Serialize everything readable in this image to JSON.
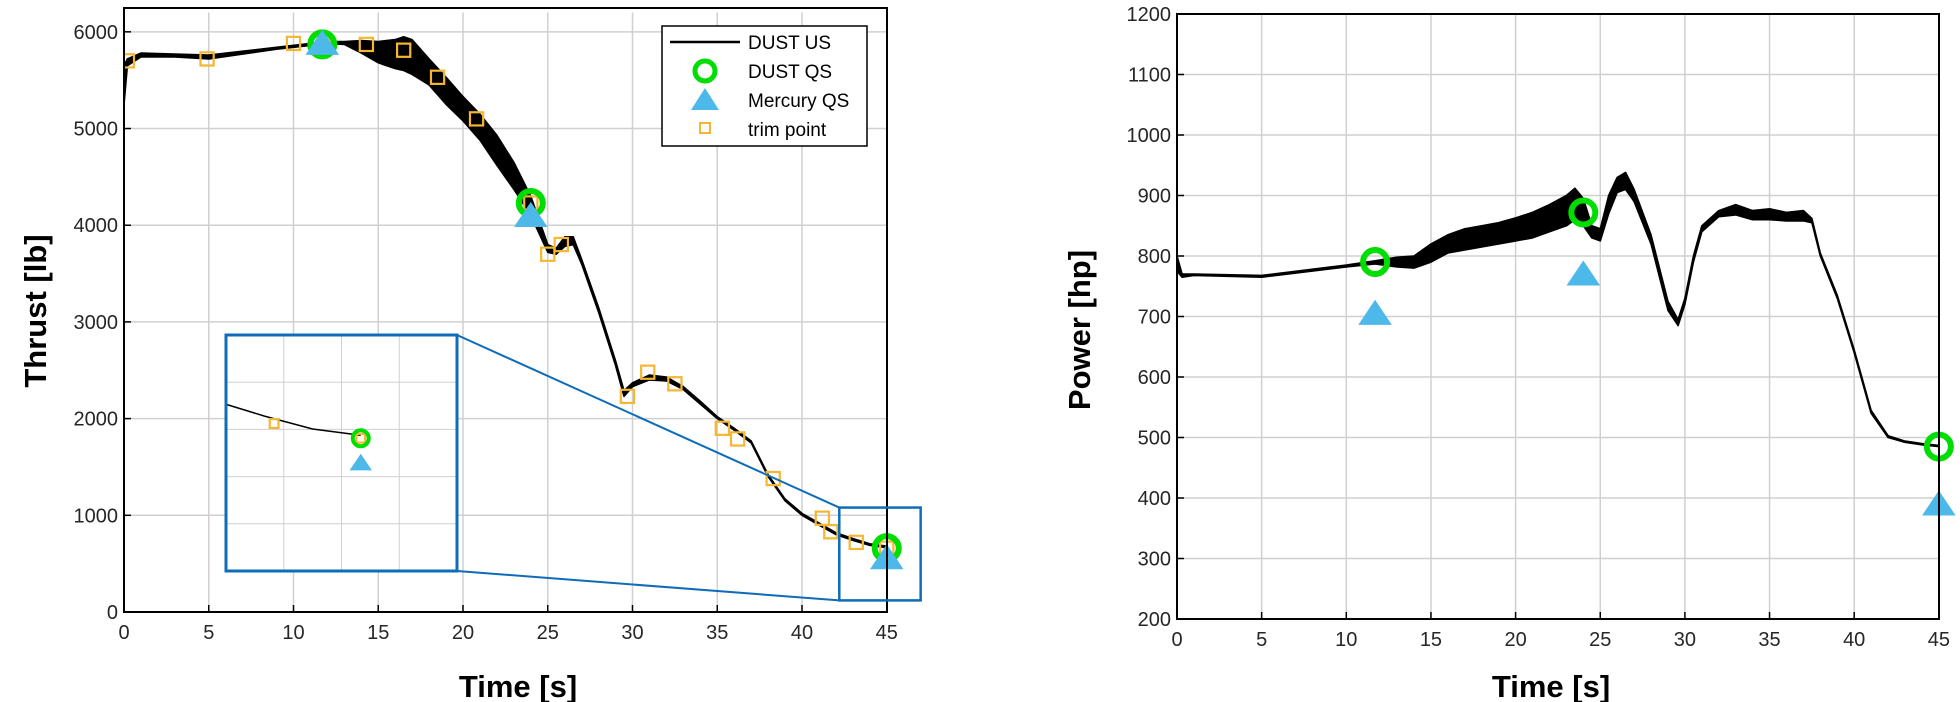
{
  "colors": {
    "us_band": "#000000",
    "dust_qs": "#00dd00",
    "mercury_qs": "#4db8ea",
    "trim_point": "#f5b731",
    "zoom_box": "#0e6cb8",
    "grid": "#d0d0d0"
  },
  "chart_data": [
    {
      "type": "line",
      "xlabel": "Time [s]",
      "ylabel": "Thrust [lb]",
      "xlim": [
        0,
        47
      ],
      "ylim": [
        0,
        6200
      ],
      "xticks": [
        0,
        5,
        10,
        15,
        20,
        25,
        30,
        35,
        40,
        45
      ],
      "yticks": [
        0,
        1000,
        2000,
        3000,
        4000,
        5000,
        6000
      ],
      "grid": true,
      "legend": {
        "placement": "top-right",
        "entries": [
          "DUST US",
          "DUST QS",
          "Mercury QS",
          "trim point"
        ]
      },
      "series": [
        {
          "name": "DUST US",
          "marker": "line",
          "band": [
            [
              0.0,
              5250,
              5650
            ],
            [
              0.2,
              5650,
              5720
            ],
            [
              1.0,
              5740,
              5780
            ],
            [
              3.0,
              5740,
              5770
            ],
            [
              5.0,
              5720,
              5760
            ],
            [
              7.0,
              5770,
              5800
            ],
            [
              9.0,
              5820,
              5840
            ],
            [
              11.0,
              5860,
              5880
            ],
            [
              12.0,
              5880,
              5900
            ],
            [
              13.0,
              5870,
              5900
            ],
            [
              14.0,
              5780,
              5910
            ],
            [
              15.0,
              5680,
              5900
            ],
            [
              16.0,
              5620,
              5920
            ],
            [
              16.5,
              5600,
              5950
            ],
            [
              17.0,
              5560,
              5920
            ],
            [
              18.0,
              5450,
              5720
            ],
            [
              19.0,
              5250,
              5530
            ],
            [
              20.0,
              5080,
              5330
            ],
            [
              21.0,
              4880,
              5150
            ],
            [
              22.0,
              4620,
              4930
            ],
            [
              23.0,
              4370,
              4650
            ],
            [
              24.0,
              4100,
              4300
            ],
            [
              25.0,
              3720,
              3800
            ],
            [
              25.5,
              3700,
              3760
            ],
            [
              26.0,
              3780,
              3880
            ],
            [
              26.5,
              3800,
              3880
            ],
            [
              27.0,
              3600,
              3650
            ],
            [
              28.0,
              3100,
              3150
            ],
            [
              29.0,
              2550,
              2600
            ],
            [
              29.5,
              2230,
              2290
            ],
            [
              30.0,
              2330,
              2370
            ],
            [
              31.0,
              2400,
              2450
            ],
            [
              32.0,
              2390,
              2430
            ],
            [
              33.0,
              2300,
              2330
            ],
            [
              34.0,
              2150,
              2180
            ],
            [
              35.0,
              2000,
              2020
            ],
            [
              36.0,
              1880,
              1900
            ],
            [
              37.0,
              1750,
              1770
            ],
            [
              38.0,
              1400,
              1420
            ],
            [
              39.0,
              1150,
              1170
            ],
            [
              40.0,
              1000,
              1020
            ],
            [
              41.0,
              900,
              920
            ],
            [
              42.0,
              800,
              820
            ],
            [
              43.0,
              740,
              760
            ],
            [
              44.0,
              690,
              705
            ],
            [
              45.0,
              665,
              680
            ]
          ]
        },
        {
          "name": "DUST QS",
          "marker": "circle",
          "points": [
            [
              11.7,
              5870
            ],
            [
              24.0,
              4230
            ],
            [
              45.0,
              660
            ]
          ]
        },
        {
          "name": "Mercury QS",
          "marker": "triangle",
          "points": [
            [
              11.7,
              5880
            ],
            [
              24.0,
              4100
            ],
            [
              45.0,
              560
            ]
          ]
        },
        {
          "name": "trim point",
          "marker": "square",
          "points": [
            [
              0.2,
              5700
            ],
            [
              4.9,
              5720
            ],
            [
              10.0,
              5880
            ],
            [
              11.8,
              5860
            ],
            [
              14.3,
              5870
            ],
            [
              16.5,
              5810
            ],
            [
              18.5,
              5530
            ],
            [
              20.8,
              5100
            ],
            [
              24.0,
              4230
            ],
            [
              25.0,
              3700
            ],
            [
              25.8,
              3800
            ],
            [
              29.7,
              2230
            ],
            [
              30.9,
              2480
            ],
            [
              32.5,
              2360
            ],
            [
              35.3,
              1900
            ],
            [
              36.2,
              1790
            ],
            [
              38.3,
              1380
            ],
            [
              41.2,
              970
            ],
            [
              41.7,
              830
            ],
            [
              43.2,
              720
            ],
            [
              45.0,
              660
            ]
          ]
        }
      ]
    },
    {
      "type": "line",
      "xlabel": "Time [s]",
      "ylabel": "Power [hp]",
      "xlim": [
        0,
        45
      ],
      "ylim": [
        200,
        1200
      ],
      "xticks": [
        0,
        5,
        10,
        15,
        20,
        25,
        30,
        35,
        40,
        45
      ],
      "yticks": [
        200,
        300,
        400,
        500,
        600,
        700,
        800,
        900,
        1000,
        1100,
        1200
      ],
      "grid": true,
      "series": [
        {
          "name": "DUST US",
          "marker": "line",
          "band": [
            [
              0.0,
              775,
              800
            ],
            [
              0.3,
              765,
              770
            ],
            [
              1.0,
              768,
              770
            ],
            [
              5.0,
              765,
              768
            ],
            [
              10.0,
              782,
              785
            ],
            [
              11.7,
              787,
              792
            ],
            [
              13.0,
              782,
              798
            ],
            [
              14.0,
              780,
              800
            ],
            [
              15.0,
              790,
              820
            ],
            [
              16.0,
              805,
              835
            ],
            [
              17.0,
              810,
              845
            ],
            [
              18.0,
              815,
              850
            ],
            [
              19.0,
              820,
              855
            ],
            [
              20.0,
              825,
              863
            ],
            [
              21.0,
              830,
              872
            ],
            [
              22.0,
              840,
              885
            ],
            [
              23.0,
              850,
              900
            ],
            [
              23.5,
              860,
              912
            ],
            [
              24.0,
              850,
              895
            ],
            [
              24.5,
              830,
              850
            ],
            [
              25.0,
              825,
              845
            ],
            [
              25.5,
              870,
              900
            ],
            [
              26.0,
              905,
              930
            ],
            [
              26.5,
              910,
              938
            ],
            [
              27.0,
              890,
              910
            ],
            [
              28.0,
              820,
              835
            ],
            [
              29.0,
              710,
              725
            ],
            [
              29.6,
              685,
              695
            ],
            [
              30.0,
              720,
              730
            ],
            [
              30.5,
              790,
              800
            ],
            [
              31.0,
              840,
              850
            ],
            [
              32.0,
              865,
              875
            ],
            [
              33.0,
              868,
              885
            ],
            [
              34.0,
              860,
              875
            ],
            [
              35.0,
              860,
              878
            ],
            [
              36.0,
              858,
              872
            ],
            [
              37.0,
              858,
              875
            ],
            [
              37.5,
              855,
              862
            ],
            [
              38.0,
              800,
              805
            ],
            [
              39.0,
              730,
              735
            ],
            [
              40.0,
              640,
              645
            ],
            [
              41.0,
              540,
              545
            ],
            [
              42.0,
              500,
              503
            ],
            [
              43.0,
              492,
              494
            ],
            [
              44.0,
              488,
              490
            ],
            [
              45.0,
              485,
              487
            ]
          ]
        },
        {
          "name": "DUST QS",
          "marker": "circle",
          "points": [
            [
              11.7,
              790
            ],
            [
              24.0,
              872
            ],
            [
              45.0,
              485
            ]
          ]
        },
        {
          "name": "Mercury QS",
          "marker": "triangle",
          "points": [
            [
              11.7,
              705
            ],
            [
              24.0,
              770
            ],
            [
              45.0,
              390
            ]
          ]
        }
      ]
    }
  ]
}
